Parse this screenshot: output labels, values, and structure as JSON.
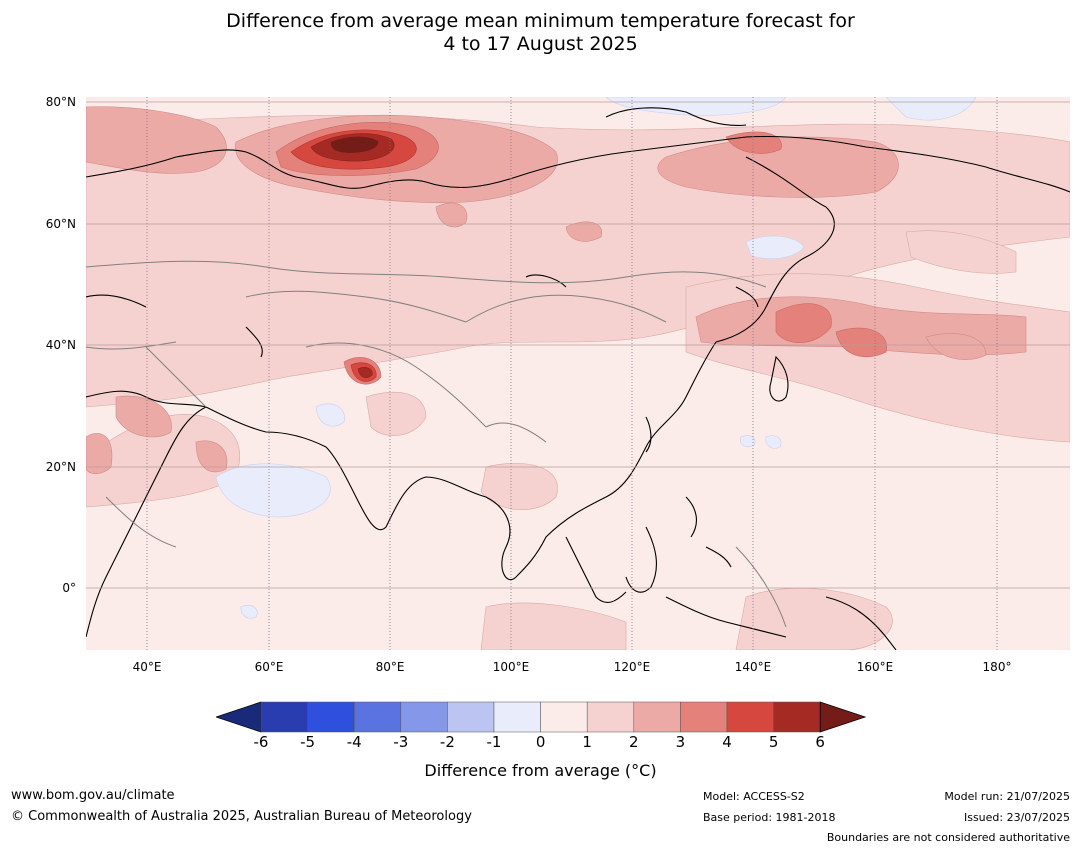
{
  "title_line1": "Difference from average mean minimum temperature forecast for",
  "title_line2": "4 to 17 August 2025",
  "lat_labels": [
    "80°N",
    "60°N",
    "40°N",
    "20°N",
    "0°"
  ],
  "lon_labels": [
    "40°E",
    "60°E",
    "80°E",
    "100°E",
    "120°E",
    "140°E",
    "160°E",
    "180°"
  ],
  "colorbar": {
    "ticks": [
      "-6",
      "-5",
      "-4",
      "-3",
      "-2",
      "-1",
      "0",
      "1",
      "2",
      "3",
      "4",
      "5",
      "6"
    ],
    "colors": [
      "#1a2a7a",
      "#2a3db0",
      "#2f4fdd",
      "#5b73e0",
      "#8597e8",
      "#bcc5f2",
      "#e8ecfb",
      "#fbebe9",
      "#f5d2cf",
      "#ecaaa6",
      "#e4817b",
      "#d6473f",
      "#a52a24",
      "#741c18"
    ],
    "label": "Difference from average (°C)"
  },
  "footer": {
    "website": "www.bom.gov.au/climate",
    "copyright": "© Commonwealth of Australia 2025, Australian Bureau of Meteorology",
    "model": "Model: ACCESS-S2",
    "base_period": "Base period: 1981-2018",
    "model_run": "Model run: 21/07/2025",
    "issued": "Issued: 23/07/2025",
    "disclaimer": "Boundaries are not considered authoritative"
  }
}
